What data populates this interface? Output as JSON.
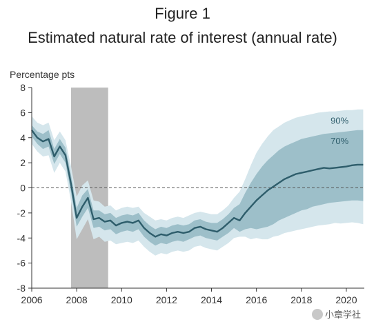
{
  "figure": {
    "label": "Figure 1",
    "title": "Estimated natural rate of interest (annual rate)"
  },
  "watermark": {
    "text": "小章学社",
    "icon": "wechat-icon"
  },
  "chart_data": {
    "type": "line",
    "title": "Estimated natural rate of interest (annual rate)",
    "ylabel": "Percentage pts",
    "xlabel": "",
    "xlim": [
      2006,
      2020.8
    ],
    "ylim": [
      -8,
      8
    ],
    "x_ticks": [
      2006,
      2008,
      2010,
      2012,
      2014,
      2016,
      2018,
      2020
    ],
    "y_ticks": [
      -8,
      -6,
      -4,
      -2,
      0,
      2,
      4,
      6,
      8
    ],
    "zero_line": "dashed",
    "grid": false,
    "recession_shading": {
      "start": 2007.75,
      "end": 2009.4,
      "color": "#bdbdbd"
    },
    "colors": {
      "median": "#2e5d6b",
      "band70": "#9dbfc9",
      "band90": "#d5e6ec",
      "recession": "#bdbdbd"
    },
    "band_labels": [
      {
        "text": "90%",
        "at": [
          2019.7,
          5.1
        ]
      },
      {
        "text": "70%",
        "at": [
          2019.7,
          3.5
        ]
      }
    ],
    "x": [
      2006.0,
      2006.25,
      2006.5,
      2006.75,
      2007.0,
      2007.25,
      2007.5,
      2007.75,
      2008.0,
      2008.25,
      2008.5,
      2008.75,
      2009.0,
      2009.25,
      2009.5,
      2009.75,
      2010.0,
      2010.25,
      2010.5,
      2010.75,
      2011.0,
      2011.25,
      2011.5,
      2011.75,
      2012.0,
      2012.25,
      2012.5,
      2012.75,
      2013.0,
      2013.25,
      2013.5,
      2013.75,
      2014.0,
      2014.25,
      2014.5,
      2014.75,
      2015.0,
      2015.25,
      2015.5,
      2015.75,
      2016.0,
      2016.25,
      2016.5,
      2016.75,
      2017.0,
      2017.25,
      2017.5,
      2017.75,
      2018.0,
      2018.25,
      2018.5,
      2018.75,
      2019.0,
      2019.25,
      2019.5,
      2019.75,
      2020.0,
      2020.25,
      2020.5,
      2020.75
    ],
    "series": [
      {
        "role": "median",
        "values": [
          4.6,
          4.0,
          3.7,
          3.9,
          2.5,
          3.3,
          2.6,
          0.3,
          -2.4,
          -1.5,
          -0.8,
          -2.5,
          -2.4,
          -2.7,
          -2.6,
          -3.0,
          -2.8,
          -2.7,
          -2.8,
          -2.6,
          -3.2,
          -3.6,
          -3.9,
          -3.7,
          -3.8,
          -3.6,
          -3.5,
          -3.6,
          -3.5,
          -3.2,
          -3.1,
          -3.3,
          -3.4,
          -3.5,
          -3.2,
          -2.8,
          -2.4,
          -2.6,
          -2.0,
          -1.5,
          -1.0,
          -0.6,
          -0.2,
          0.1,
          0.4,
          0.7,
          0.9,
          1.1,
          1.2,
          1.3,
          1.4,
          1.5,
          1.6,
          1.55,
          1.6,
          1.65,
          1.7,
          1.8,
          1.85,
          1.85
        ]
      },
      {
        "role": "band90-upper",
        "values": [
          5.7,
          5.2,
          5.0,
          5.2,
          3.8,
          4.5,
          3.8,
          1.7,
          -0.7,
          0.2,
          0.6,
          -1.0,
          -1.1,
          -1.5,
          -1.4,
          -1.8,
          -1.6,
          -1.5,
          -1.6,
          -1.5,
          -2.0,
          -2.3,
          -2.6,
          -2.5,
          -2.6,
          -2.4,
          -2.3,
          -2.4,
          -2.2,
          -2.0,
          -1.9,
          -2.0,
          -2.1,
          -2.1,
          -1.8,
          -1.4,
          -0.8,
          -0.3,
          0.7,
          1.8,
          2.8,
          3.5,
          4.1,
          4.6,
          4.9,
          5.2,
          5.4,
          5.6,
          5.7,
          5.8,
          5.9,
          6.0,
          6.05,
          6.1,
          6.1,
          6.15,
          6.2,
          6.2,
          6.25,
          6.25
        ]
      },
      {
        "role": "band70-upper",
        "values": [
          5.0,
          4.5,
          4.3,
          4.6,
          3.1,
          3.9,
          3.2,
          1.0,
          -1.6,
          -0.6,
          -0.1,
          -1.8,
          -1.8,
          -2.1,
          -2.0,
          -2.4,
          -2.2,
          -2.1,
          -2.2,
          -2.0,
          -2.6,
          -3.0,
          -3.3,
          -3.1,
          -3.2,
          -3.0,
          -2.9,
          -3.0,
          -2.9,
          -2.6,
          -2.5,
          -2.7,
          -2.8,
          -2.8,
          -2.5,
          -2.1,
          -1.6,
          -1.3,
          -0.4,
          0.4,
          1.1,
          1.7,
          2.2,
          2.6,
          3.0,
          3.3,
          3.5,
          3.7,
          3.9,
          4.0,
          4.1,
          4.2,
          4.3,
          4.35,
          4.4,
          4.45,
          4.5,
          4.55,
          4.6,
          4.6
        ]
      },
      {
        "role": "band70-lower",
        "values": [
          4.1,
          3.5,
          3.1,
          3.3,
          1.9,
          2.7,
          2.0,
          -0.4,
          -3.1,
          -2.3,
          -1.6,
          -3.2,
          -3.1,
          -3.4,
          -3.3,
          -3.7,
          -3.5,
          -3.4,
          -3.5,
          -3.3,
          -3.9,
          -4.3,
          -4.6,
          -4.4,
          -4.5,
          -4.3,
          -4.2,
          -4.3,
          -4.1,
          -3.9,
          -3.8,
          -4.0,
          -4.1,
          -4.2,
          -3.9,
          -3.6,
          -3.2,
          -3.5,
          -3.3,
          -3.2,
          -3.3,
          -3.2,
          -3.1,
          -2.9,
          -2.6,
          -2.4,
          -2.2,
          -2.0,
          -1.8,
          -1.7,
          -1.5,
          -1.4,
          -1.3,
          -1.2,
          -1.15,
          -1.1,
          -1.05,
          -1.0,
          -1.0,
          -1.05
        ]
      },
      {
        "role": "band90-lower",
        "values": [
          3.5,
          2.9,
          2.5,
          2.6,
          1.2,
          2.0,
          1.3,
          -1.1,
          -4.1,
          -3.3,
          -2.5,
          -4.1,
          -3.9,
          -4.3,
          -4.2,
          -4.5,
          -4.4,
          -4.3,
          -4.4,
          -4.2,
          -4.7,
          -5.1,
          -5.4,
          -5.2,
          -5.3,
          -5.1,
          -5.0,
          -5.1,
          -5.0,
          -4.7,
          -4.6,
          -4.8,
          -4.9,
          -5.0,
          -4.7,
          -4.4,
          -4.0,
          -3.9,
          -3.9,
          -4.1,
          -4.0,
          -4.1,
          -4.1,
          -3.9,
          -3.8,
          -3.6,
          -3.5,
          -3.4,
          -3.3,
          -3.2,
          -3.1,
          -3.0,
          -2.95,
          -2.9,
          -2.8,
          -2.85,
          -2.8,
          -2.75,
          -2.8,
          -2.9
        ]
      }
    ]
  }
}
